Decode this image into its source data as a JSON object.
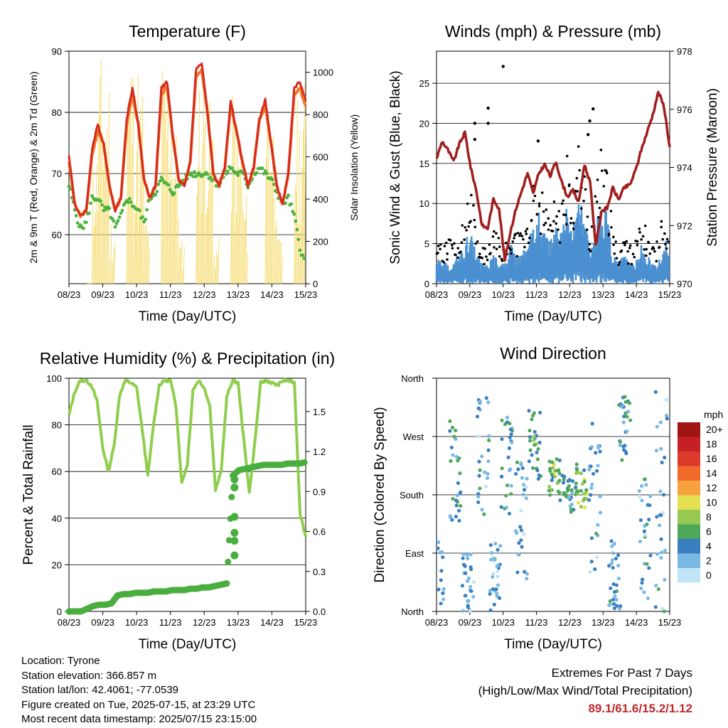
{
  "chart_data": [
    {
      "type": "line",
      "title": "Temperature (F)",
      "xlabel": "Time (Day/UTC)",
      "ylabel": "2m & 9m T (Red, Orange) & 2m Td (Green)",
      "ylabel_right": "Solar Insolation (Yellow)",
      "x_ticks": [
        "08/23",
        "09/23",
        "10/23",
        "11/23",
        "12/23",
        "13/23",
        "14/23",
        "15/23"
      ],
      "ylim": [
        52,
        90
      ],
      "y_ticks": [
        60,
        70,
        80,
        90
      ],
      "ylim_right": [
        0,
        1100
      ],
      "y_ticks_right": [
        0,
        200,
        400,
        600,
        800,
        1000
      ],
      "grid": "horizontal",
      "colors": {
        "t2m": "#d62b1f",
        "t9m": "#f07a2a",
        "td2m": "#4db33d",
        "solar": "#f5dc6e"
      },
      "series": [
        {
          "key": "t2m",
          "values": [
            73,
            65,
            63,
            64,
            74,
            78,
            75,
            68,
            64,
            66,
            79,
            84,
            78,
            69,
            66,
            68,
            84,
            85,
            76,
            69,
            68,
            72,
            87,
            88,
            80,
            70,
            68,
            71,
            82,
            77,
            72,
            68,
            71,
            79,
            82,
            75,
            68,
            65,
            70,
            84,
            85,
            82
          ]
        },
        {
          "key": "t9m",
          "values": [
            72,
            65,
            63,
            64,
            73,
            77,
            75,
            68,
            64,
            66,
            78,
            83,
            78,
            69,
            66,
            68,
            83,
            84,
            76,
            69,
            68,
            72,
            86,
            87,
            80,
            70,
            68,
            71,
            81,
            77,
            72,
            68,
            71,
            79,
            81,
            75,
            68,
            65,
            70,
            83,
            84,
            81
          ]
        },
        {
          "key": "td2m",
          "values": [
            68,
            64,
            61,
            62,
            66,
            66,
            64,
            64,
            61,
            63,
            66,
            65,
            64,
            62,
            66,
            67,
            69,
            68,
            67,
            68,
            69,
            70,
            70,
            70,
            70,
            69,
            68,
            70,
            71,
            70,
            70,
            68,
            70,
            71,
            70,
            69,
            67,
            65,
            66,
            63,
            58,
            55
          ]
        },
        {
          "key": "solar",
          "values": [
            0,
            0,
            0,
            5,
            600,
            1000,
            950,
            300,
            0,
            0,
            1100,
            1000,
            900,
            300,
            0,
            0,
            1000,
            1050,
            700,
            200,
            0,
            0,
            950,
            1000,
            800,
            200,
            0,
            0,
            900,
            700,
            400,
            0,
            0,
            0,
            1000,
            800,
            200,
            0,
            0,
            800,
            900,
            0
          ]
        }
      ]
    },
    {
      "type": "line",
      "title": "Winds (mph) & Pressure (mb)",
      "xlabel": "Time (Day/UTC)",
      "ylabel": "Sonic Wind & Gust (Blue, Black)",
      "ylabel_right": "Station Pressure (Maroon)",
      "x_ticks": [
        "08/23",
        "09/23",
        "10/23",
        "11/23",
        "12/23",
        "13/23",
        "14/23",
        "15/23"
      ],
      "ylim": [
        0,
        29
      ],
      "y_ticks": [
        0,
        5,
        10,
        15,
        20,
        25
      ],
      "ylim_right": [
        970,
        978
      ],
      "y_ticks_right": [
        970,
        972,
        974,
        976,
        978
      ],
      "grid": "horizontal",
      "colors": {
        "wind": "#4a90d0",
        "gust": "#000000",
        "pressure": "#a01e1e"
      },
      "series": [
        {
          "key": "wind",
          "values": [
            3,
            2,
            2,
            2,
            3,
            4,
            6,
            3,
            2,
            2,
            3,
            2,
            2,
            4,
            3,
            3,
            4,
            6,
            7,
            5,
            4,
            6,
            5,
            8,
            6,
            9,
            7,
            3,
            6,
            8,
            7,
            3,
            2,
            3,
            2,
            2,
            4,
            3,
            2,
            2,
            5,
            3
          ]
        },
        {
          "key": "gust",
          "values": [
            6,
            4,
            5,
            5,
            6,
            8,
            11,
            6,
            4,
            4,
            6,
            5,
            4,
            7,
            6,
            6,
            7,
            11,
            12,
            9,
            7,
            10,
            9,
            14,
            11,
            16,
            13,
            6,
            10,
            15,
            12,
            6,
            4,
            6,
            4,
            5,
            7,
            6,
            4,
            5,
            8,
            6
          ]
        },
        {
          "key": "pressure",
          "values": [
            974.3,
            974.9,
            974.6,
            974.2,
            974.8,
            975.2,
            974.0,
            973.2,
            972.0,
            971.9,
            972.9,
            972.6,
            970.8,
            971.8,
            972.6,
            973.2,
            973.8,
            973.1,
            973.8,
            974.1,
            973.7,
            974.2,
            973.5,
            973.0,
            973.2,
            972.8,
            974.1,
            973.5,
            971.3,
            972.5,
            972.6,
            973.3,
            972.9,
            973.3,
            973.4,
            973.9,
            974.6,
            975.2,
            975.8,
            976.6,
            976.1,
            974.7
          ]
        }
      ],
      "gust_points": [
        {
          "x": 2.0,
          "y": 27.1
        },
        {
          "x": 1.55,
          "y": 21.9
        },
        {
          "x": 1.55,
          "y": 20.0
        },
        {
          "x": 1.15,
          "y": 20.0
        },
        {
          "x": 1.15,
          "y": 18.0
        },
        {
          "x": 3.05,
          "y": 17.8
        },
        {
          "x": 4.7,
          "y": 21.8
        },
        {
          "x": 4.6,
          "y": 20.3
        },
        {
          "x": 4.55,
          "y": 18.6
        }
      ]
    },
    {
      "type": "line",
      "title": "Relative Humidity (%) & Precipitation (in)",
      "xlabel": "Time (Day/UTC)",
      "ylabel": "Percent & Total Rainfall",
      "x_ticks": [
        "08/23",
        "09/23",
        "10/23",
        "11/23",
        "12/23",
        "13/23",
        "14/23",
        "15/23"
      ],
      "ylim": [
        0,
        100
      ],
      "y_ticks": [
        0,
        20,
        40,
        60,
        80,
        100
      ],
      "ylim_right": [
        0,
        1.75
      ],
      "y_ticks_right": [
        "0.0",
        "0.3",
        "0.6",
        "0.9",
        "1.2",
        "1.5"
      ],
      "grid": "horizontal",
      "colors": {
        "rh": "#8fce4d",
        "precip": "#4aae3f"
      },
      "series": [
        {
          "key": "rh",
          "values": [
            84,
            94,
            99,
            99,
            97,
            90,
            70,
            60,
            71,
            93,
            99,
            98,
            96,
            78,
            58,
            80,
            97,
            99,
            99,
            88,
            55,
            63,
            95,
            99,
            96,
            88,
            52,
            60,
            92,
            99,
            98,
            74,
            51,
            73,
            98,
            99,
            98,
            97,
            99,
            99,
            98,
            42,
            32
          ]
        },
        {
          "key": "precip",
          "values": [
            0.0,
            0.0,
            0.0,
            0.02,
            0.04,
            0.05,
            0.05,
            0.06,
            0.12,
            0.13,
            0.13,
            0.14,
            0.14,
            0.14,
            0.15,
            0.15,
            0.15,
            0.16,
            0.16,
            0.16,
            0.17,
            0.17,
            0.18,
            0.18,
            0.19,
            0.2,
            0.21,
            1.02,
            1.06,
            1.07,
            1.08,
            1.09,
            1.1,
            1.1,
            1.1,
            1.1,
            1.11,
            1.11,
            1.11,
            1.12
          ]
        }
      ],
      "precip_jump_points": [
        0.42,
        0.53,
        0.59,
        0.71,
        0.93,
        0.99
      ]
    },
    {
      "type": "scatter",
      "title": "Wind Direction",
      "xlabel": "Time (Day/UTC)",
      "ylabel": "Direction (Colored By Speed)",
      "x_ticks": [
        "08/23",
        "09/23",
        "10/23",
        "11/23",
        "12/23",
        "13/23",
        "14/23",
        "15/23"
      ],
      "y_ticks": [
        "North",
        "East",
        "South",
        "West",
        "North"
      ],
      "ylim": [
        0,
        360
      ],
      "grid": "horizontal",
      "legend": {
        "title": "mph",
        "labels": [
          "20+",
          "18",
          "16",
          "14",
          "12",
          "10",
          "8",
          "6",
          "4",
          "2",
          "0"
        ],
        "colors": [
          "#a01414",
          "#c62027",
          "#dc3a2a",
          "#f0682a",
          "#f6a23f",
          "#e4e052",
          "#96c954",
          "#4fa85a",
          "#3a80c0",
          "#7ab8e4",
          "#c2e4f7"
        ]
      },
      "clusters": [
        {
          "day": 0.05,
          "dir_range": [
            0,
            110
          ],
          "speed": 2
        },
        {
          "day": 0.55,
          "dir_range": [
            140,
            300
          ],
          "speed": 4
        },
        {
          "day": 0.95,
          "dir_range": [
            0,
            90
          ],
          "speed": 3
        },
        {
          "day": 1.4,
          "dir_range": [
            150,
            330
          ],
          "speed": 3
        },
        {
          "day": 1.75,
          "dir_range": [
            0,
            110
          ],
          "speed": 3
        },
        {
          "day": 2.1,
          "dir_range": [
            150,
            300
          ],
          "speed": 4
        },
        {
          "day": 2.55,
          "dir_range": [
            30,
            240
          ],
          "speed": 3
        },
        {
          "day": 2.95,
          "dir_range": [
            200,
            320
          ],
          "speed": 5
        },
        {
          "day": 3.55,
          "dir_range": [
            170,
            240
          ],
          "speed": 7
        },
        {
          "day": 3.95,
          "dir_range": [
            150,
            210
          ],
          "speed": 5
        },
        {
          "day": 4.35,
          "dir_range": [
            160,
            230
          ],
          "speed": 7
        },
        {
          "day": 4.75,
          "dir_range": [
            60,
            290
          ],
          "speed": 3
        },
        {
          "day": 5.35,
          "dir_range": [
            0,
            110
          ],
          "speed": 3
        },
        {
          "day": 5.65,
          "dir_range": [
            230,
            340
          ],
          "speed": 4
        },
        {
          "day": 6.25,
          "dir_range": [
            20,
            250
          ],
          "speed": 3
        },
        {
          "day": 6.75,
          "dir_range": [
            0,
            340
          ],
          "speed": 3
        }
      ]
    }
  ],
  "info": {
    "location": "Location: Tyrone",
    "elevation": "Station elevation: 366.857 m",
    "latlon": "Station lat/lon: 42.4061; -77.0539",
    "created": "Figure created on Tue, 2025-07-15, at 23:29 UTC",
    "recent": "Most recent data timestamp: 2025/07/15 23:15:00"
  },
  "extremes": {
    "title": "Extremes For Past 7 Days",
    "subtitle": "(High/Low/Max Wind/Total Precipitation)",
    "values": "89.1/61.6/15.2/1.12"
  }
}
